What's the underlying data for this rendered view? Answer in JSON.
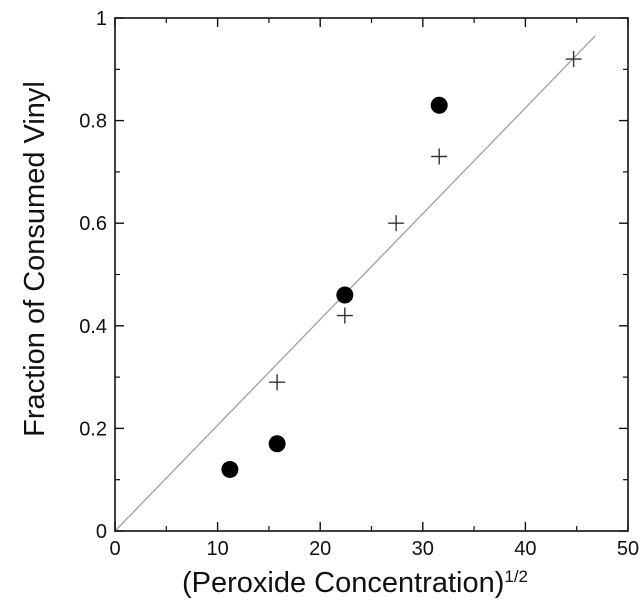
{
  "chart_data": {
    "type": "scatter",
    "title": "",
    "xlabel": "(Peroxide Concentration)",
    "xlabel_superscript": "1/2",
    "ylabel": "Fraction of Consumed Vinyl",
    "xlim": [
      0,
      50
    ],
    "ylim": [
      0,
      1
    ],
    "x_ticks": [
      "0",
      "10",
      "20",
      "30",
      "40",
      "50"
    ],
    "y_ticks": [
      "0",
      "0.2",
      "0.4",
      "0.6",
      "0.8",
      "1"
    ],
    "grid": false,
    "legend": "none",
    "series": [
      {
        "marker": "filled-circle",
        "color": "#000000",
        "points": [
          {
            "x": 11.2,
            "y": 0.12
          },
          {
            "x": 15.8,
            "y": 0.17
          },
          {
            "x": 22.4,
            "y": 0.46
          },
          {
            "x": 31.6,
            "y": 0.83
          }
        ]
      },
      {
        "marker": "plus",
        "color": "#333333",
        "points": [
          {
            "x": 15.8,
            "y": 0.29
          },
          {
            "x": 22.4,
            "y": 0.42
          },
          {
            "x": 27.4,
            "y": 0.6
          },
          {
            "x": 31.6,
            "y": 0.73
          },
          {
            "x": 44.7,
            "y": 0.92
          }
        ]
      }
    ],
    "fit_line": {
      "color": "#a0a0a0",
      "from": {
        "x": 0,
        "y": 0
      },
      "to": {
        "x": 46.8,
        "y": 0.965
      }
    }
  }
}
